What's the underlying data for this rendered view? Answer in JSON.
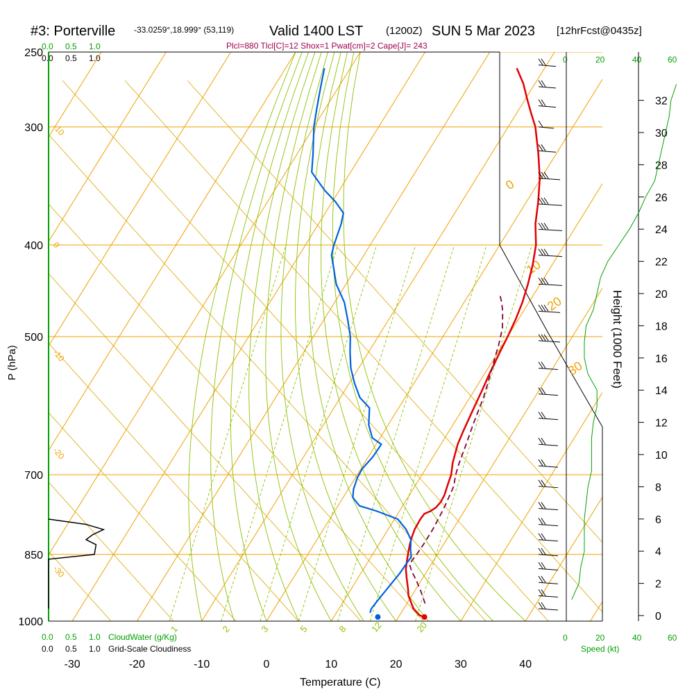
{
  "header": {
    "station": "#3: Porterville",
    "coords": "-33.0259°,18.999° (53,119)",
    "valid": "Valid 1400 LST",
    "utc": "(1200Z)",
    "date": "SUN 5 Mar 2023",
    "forecast": "[12hrFcst@0435z]",
    "parcel_info": "Plcl=880 Tlcl[C]=12 Shox=1 Pwat[cm]=2 Cape[J]= 243"
  },
  "colors": {
    "isotherm": "#f0a000",
    "dry_adiabat": "#d7a800",
    "moist_adiabat": "#8cc000",
    "mixing_ratio": "#8cc000",
    "temperature": "#e00000",
    "dewpoint": "#0060e0",
    "parcel": "#800040",
    "cloud_water": "#00a000",
    "speed": "#00a000",
    "frame": "#000000"
  },
  "cloud_scale": {
    "green_labels": [
      "0.0",
      "0.5",
      "1.0"
    ],
    "black_labels": [
      "0.0",
      "0.5",
      "1.0"
    ],
    "green_title": "CloudWater (g/Kg)",
    "black_title": "Grid-Scale Cloudiness"
  },
  "speed_scale": {
    "labels": [
      "0",
      "20",
      "40",
      "60"
    ],
    "title": "Speed (kt)"
  },
  "chart_data": {
    "type": "line",
    "title": "Skew-T log-P sounding",
    "xlabel": "Temperature (C)",
    "ylabel": "P (hPa)",
    "y2label": "Height (1000 Feet)",
    "x_ticks": [
      -30,
      -20,
      -10,
      0,
      10,
      20,
      30,
      40
    ],
    "p_ticks": [
      250,
      300,
      400,
      500,
      700,
      850,
      1000
    ],
    "height_ticks": [
      0,
      2,
      4,
      6,
      8,
      10,
      12,
      14,
      16,
      18,
      20,
      22,
      24,
      26,
      28,
      30,
      32
    ],
    "isotherm_labels": [
      {
        "t": -10,
        "p": 300,
        "text": "-10"
      },
      {
        "t": 0,
        "p": 400,
        "text": "0"
      },
      {
        "t": -10,
        "p": 520,
        "text": "-10"
      },
      {
        "t": -20,
        "p": 660,
        "text": "-20"
      },
      {
        "t": -30,
        "p": 880,
        "text": "-30"
      },
      {
        "t": 0,
        "p": 350,
        "text": "0"
      },
      {
        "t": 10,
        "p": 430,
        "text": "10"
      },
      {
        "t": 20,
        "p": 470,
        "text": "20"
      },
      {
        "t": 30,
        "p": 550,
        "text": "30"
      }
    ],
    "mixing_ratio_labels": [
      "1",
      "2",
      "3",
      "5",
      "8",
      "12",
      "20"
    ],
    "series": [
      {
        "name": "Temperature",
        "points": [
          [
            24.0,
            990
          ],
          [
            23.5,
            988
          ],
          [
            23.0,
            985
          ],
          [
            22.5,
            980
          ],
          [
            21.5,
            970
          ],
          [
            20.5,
            955
          ],
          [
            19.5,
            940
          ],
          [
            18.8,
            925
          ],
          [
            17.5,
            900
          ],
          [
            16.5,
            880
          ],
          [
            15.8,
            860
          ],
          [
            15.3,
            845
          ],
          [
            14.8,
            830
          ],
          [
            14.4,
            815
          ],
          [
            14.1,
            800
          ],
          [
            14.0,
            780
          ],
          [
            14.1,
            770
          ],
          [
            14.8,
            765
          ],
          [
            15.3,
            758
          ],
          [
            15.5,
            748
          ],
          [
            15.4,
            735
          ],
          [
            15.0,
            720
          ],
          [
            14.5,
            700
          ],
          [
            13.6,
            680
          ],
          [
            12.6,
            650
          ],
          [
            12.2,
            630
          ],
          [
            11.7,
            600
          ],
          [
            11.2,
            570
          ],
          [
            10.8,
            550
          ],
          [
            10.3,
            520
          ],
          [
            10.0,
            500
          ],
          [
            9.6,
            480
          ],
          [
            9.0,
            460
          ],
          [
            8.1,
            440
          ],
          [
            7.0,
            420
          ],
          [
            5.6,
            400
          ],
          [
            3.5,
            380
          ],
          [
            1.8,
            360
          ],
          [
            -0.2,
            340
          ],
          [
            -2.8,
            320
          ],
          [
            -5.8,
            300
          ],
          [
            -7.8,
            290
          ],
          [
            -9.8,
            280
          ],
          [
            -11.8,
            270
          ],
          [
            -14.3,
            260
          ]
        ]
      },
      {
        "name": "Dewpoint",
        "points": [
          [
            15.2,
            980
          ],
          [
            15.0,
            970
          ],
          [
            15.2,
            950
          ],
          [
            15.6,
            920
          ],
          [
            16.0,
            890
          ],
          [
            16.1,
            870
          ],
          [
            16.2,
            855
          ],
          [
            15.4,
            840
          ],
          [
            14.5,
            820
          ],
          [
            12.8,
            800
          ],
          [
            10.5,
            780
          ],
          [
            6.5,
            765
          ],
          [
            3.3,
            755
          ],
          [
            1.5,
            740
          ],
          [
            0.8,
            725
          ],
          [
            0.3,
            705
          ],
          [
            0.2,
            690
          ],
          [
            0.7,
            670
          ],
          [
            0.8,
            650
          ],
          [
            -1.2,
            640
          ],
          [
            -3.0,
            620
          ],
          [
            -4.5,
            595
          ],
          [
            -7.0,
            580
          ],
          [
            -9.2,
            560
          ],
          [
            -11.2,
            540
          ],
          [
            -12.8,
            520
          ],
          [
            -14.3,
            500
          ],
          [
            -16.3,
            480
          ],
          [
            -18.5,
            460
          ],
          [
            -21.5,
            440
          ],
          [
            -23.8,
            420
          ],
          [
            -25.0,
            410
          ],
          [
            -25.6,
            400
          ],
          [
            -26.5,
            380
          ],
          [
            -27.2,
            370
          ],
          [
            -29.5,
            360
          ],
          [
            -32.3,
            350
          ],
          [
            -36.0,
            335
          ],
          [
            -37.6,
            320
          ],
          [
            -40.0,
            300
          ],
          [
            -41.0,
            290
          ],
          [
            -42.0,
            280
          ],
          [
            -43.0,
            270
          ],
          [
            -44.0,
            260
          ]
        ]
      },
      {
        "name": "Parcel",
        "points": [
          [
            22.8,
            958
          ],
          [
            21.0,
            930
          ],
          [
            19.2,
            905
          ],
          [
            17.6,
            885
          ],
          [
            16.6,
            870
          ],
          [
            16.8,
            850
          ],
          [
            16.9,
            830
          ],
          [
            16.9,
            800
          ],
          [
            16.6,
            760
          ],
          [
            16.0,
            720
          ],
          [
            15.2,
            700
          ],
          [
            14.6,
            680
          ],
          [
            13.9,
            650
          ],
          [
            13.1,
            620
          ],
          [
            12.6,
            600
          ],
          [
            12.1,
            580
          ],
          [
            11.4,
            560
          ],
          [
            10.2,
            530
          ],
          [
            9.4,
            510
          ],
          [
            8.4,
            490
          ],
          [
            6.8,
            470
          ],
          [
            5.8,
            460
          ],
          [
            4.6,
            450
          ]
        ]
      }
    ],
    "surface_markers": [
      {
        "name": "Temperature",
        "t": 24.0,
        "p": 990
      },
      {
        "name": "Dewpoint",
        "t": 16.8,
        "p": 990
      }
    ],
    "wind_barbs": [
      {
        "p": 258,
        "speed": 15
      },
      {
        "p": 272,
        "speed": 15
      },
      {
        "p": 285,
        "speed": 15
      },
      {
        "p": 300,
        "speed": 10
      },
      {
        "p": 318,
        "speed": 15
      },
      {
        "p": 340,
        "speed": 25
      },
      {
        "p": 362,
        "speed": 30
      },
      {
        "p": 385,
        "speed": 30
      },
      {
        "p": 410,
        "speed": 30
      },
      {
        "p": 440,
        "speed": 30
      },
      {
        "p": 470,
        "speed": 25
      },
      {
        "p": 505,
        "speed": 25
      },
      {
        "p": 540,
        "speed": 20
      },
      {
        "p": 575,
        "speed": 20
      },
      {
        "p": 610,
        "speed": 20
      },
      {
        "p": 650,
        "speed": 20
      },
      {
        "p": 685,
        "speed": 20
      },
      {
        "p": 720,
        "speed": 20
      },
      {
        "p": 760,
        "speed": 20
      },
      {
        "p": 790,
        "speed": 20
      },
      {
        "p": 820,
        "speed": 20
      },
      {
        "p": 850,
        "speed": 20
      },
      {
        "p": 880,
        "speed": 20
      },
      {
        "p": 910,
        "speed": 20
      },
      {
        "p": 940,
        "speed": 20
      },
      {
        "p": 970,
        "speed": 20
      }
    ],
    "speed_profile": [
      [
        1,
        3
      ],
      [
        2,
        7
      ],
      [
        3,
        8
      ],
      [
        4,
        10
      ],
      [
        5,
        10
      ],
      [
        6,
        10
      ],
      [
        7,
        11
      ],
      [
        8,
        12
      ],
      [
        9,
        14
      ],
      [
        10,
        14
      ],
      [
        11,
        14
      ],
      [
        12,
        15
      ],
      [
        13,
        17
      ],
      [
        14,
        17
      ],
      [
        15,
        12
      ],
      [
        16,
        10
      ],
      [
        17,
        10
      ],
      [
        18,
        11
      ],
      [
        19,
        15
      ],
      [
        20,
        17
      ],
      [
        21,
        19
      ],
      [
        22,
        23
      ],
      [
        23,
        29
      ],
      [
        24,
        35
      ],
      [
        25,
        40
      ],
      [
        26,
        44
      ],
      [
        27,
        49
      ],
      [
        28,
        51
      ],
      [
        29,
        53
      ],
      [
        30,
        55
      ],
      [
        31,
        57
      ],
      [
        32,
        58
      ],
      [
        33,
        61
      ]
    ],
    "grid_cloudiness": [
      [
        970,
        0.0
      ],
      [
        860,
        0.0
      ],
      [
        850,
        0.55
      ],
      [
        830,
        0.57
      ],
      [
        820,
        0.45
      ],
      [
        810,
        0.53
      ],
      [
        800,
        0.66
      ],
      [
        790,
        0.45
      ],
      [
        780,
        0.0
      ]
    ]
  }
}
